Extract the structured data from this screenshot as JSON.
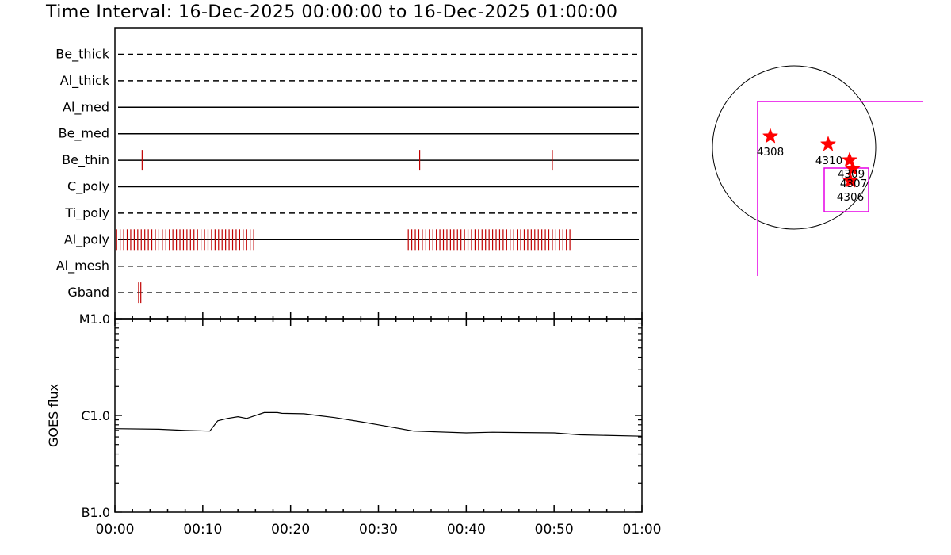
{
  "title": "Time Interval: 16-Dec-2025 00:00:00 to 16-Dec-2025 01:00:00",
  "colors": {
    "event": "#c00000",
    "star": "#ff0000",
    "fov": "#e600e6",
    "axis": "#000000"
  },
  "chart_data": [
    {
      "type": "line",
      "subtype": "event-timeline",
      "rows": [
        {
          "label": "Be_thick",
          "style": "dashed",
          "events": []
        },
        {
          "label": "Al_thick",
          "style": "dashed",
          "events": []
        },
        {
          "label": "Al_med",
          "style": "solid",
          "events": []
        },
        {
          "label": "Be_med",
          "style": "solid",
          "events": []
        },
        {
          "label": "Be_thin",
          "style": "solid",
          "events": [
            3.1,
            34.7,
            49.8
          ]
        },
        {
          "label": "C_poly",
          "style": "solid",
          "events": []
        },
        {
          "label": "Ti_poly",
          "style": "dashed",
          "events": []
        },
        {
          "label": "Al_poly",
          "style": "solid",
          "events": [
            0.2,
            0.6,
            1.0,
            1.4,
            1.8,
            2.2,
            2.6,
            3.0,
            3.4,
            3.8,
            4.2,
            4.6,
            5.0,
            5.4,
            5.8,
            6.2,
            6.6,
            7.0,
            7.4,
            7.8,
            8.2,
            8.6,
            9.0,
            9.4,
            9.8,
            10.2,
            10.6,
            11.0,
            11.4,
            11.8,
            12.2,
            12.6,
            13.0,
            13.4,
            13.8,
            14.2,
            14.6,
            15.0,
            15.4,
            15.8,
            33.4,
            33.8,
            34.2,
            34.6,
            35.0,
            35.4,
            35.8,
            36.2,
            36.6,
            37.0,
            37.4,
            37.8,
            38.2,
            38.6,
            39.0,
            39.4,
            39.8,
            40.2,
            40.6,
            41.0,
            41.4,
            41.8,
            42.2,
            42.6,
            43.0,
            43.4,
            43.8,
            44.2,
            44.6,
            45.0,
            45.4,
            45.8,
            46.2,
            46.6,
            47.0,
            47.4,
            47.8,
            48.2,
            48.6,
            49.0,
            49.4,
            49.8,
            50.2,
            50.6,
            51.0,
            51.4,
            51.8
          ]
        },
        {
          "label": "Al_mesh",
          "style": "dashed",
          "events": []
        },
        {
          "label": "Gband",
          "style": "dashed",
          "events": [
            2.7,
            2.95
          ]
        }
      ],
      "xlim": [
        0,
        60
      ]
    },
    {
      "type": "line",
      "ylabel": "GOES flux",
      "yscale": "log",
      "ylim": [
        1e-07,
        1e-05
      ],
      "ytick_labels": [
        {
          "value": 1e-05,
          "label": "M1.0"
        },
        {
          "value": 1e-06,
          "label": "C1.0"
        },
        {
          "value": 1e-07,
          "label": "B1.0"
        }
      ],
      "xlim": [
        0,
        60
      ],
      "xtick_labels": [
        "00:00",
        "00:10",
        "00:20",
        "00:30",
        "00:40",
        "00:50",
        "01:00"
      ],
      "series": [
        {
          "x": [
            0,
            5,
            8,
            10.8,
            11.7,
            12.8,
            14,
            15,
            17,
            18.5,
            19,
            21.5,
            23,
            25,
            28,
            30,
            34,
            40,
            43,
            50,
            53,
            60
          ],
          "y": [
            7.3e-07,
            7.2e-07,
            7e-07,
            6.9e-07,
            8.8e-07,
            9.3e-07,
            9.7e-07,
            9.3e-07,
            1.07e-06,
            1.07e-06,
            1.05e-06,
            1.04e-06,
            1e-06,
            9.5e-07,
            8.6e-07,
            8e-07,
            6.9e-07,
            6.6e-07,
            6.7e-07,
            6.6e-07,
            6.3e-07,
            6.1e-07
          ]
        }
      ]
    },
    {
      "type": "scatter",
      "subtype": "solar-disk-map",
      "points": [
        {
          "label": "4308"
        },
        {
          "label": "4310"
        },
        {
          "label": "4309"
        },
        {
          "label": "4307"
        },
        {
          "label": "4306"
        }
      ]
    }
  ]
}
